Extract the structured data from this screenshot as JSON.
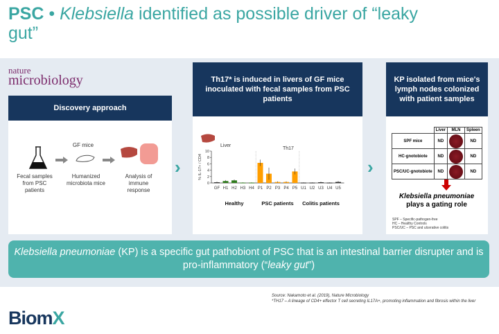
{
  "title": {
    "prefix": "PSC",
    "bullet": " • ",
    "italic": "Klebsiella",
    "rest": " identified as possible driver of “leaky gut”"
  },
  "journal": {
    "line1": "nature",
    "line2": "microbiology"
  },
  "left_panel": {
    "header": "Discovery approach",
    "gf_mice": "GF mice",
    "steps": [
      "Fecal samples from PSC patients",
      "Humanized microbiota mice",
      "Analysis of immune response"
    ]
  },
  "middle_panel": {
    "header": "Th17* is induced in livers of GF mice inoculated with fecal samples from PSC patients",
    "groups": [
      "Healthy",
      "PSC patients",
      "Colitis patients"
    ]
  },
  "right_panel": {
    "header": "KP isolated from mice's lymph nodes colonized with patient samples",
    "table": {
      "columns": [
        "Liver",
        "MLN",
        "Spleen"
      ],
      "rows": [
        {
          "label": "SPF mice",
          "liver": "ND",
          "spleen": "ND"
        },
        {
          "label": "HC-gnotobiote",
          "liver": "ND",
          "spleen": "ND"
        },
        {
          "label": "PSC/UC-gnotobiote",
          "liver": "ND",
          "spleen": "ND"
        }
      ]
    },
    "conclusion_italic": "Klebsiella pneumoniae",
    "conclusion_rest": "plays a gating role",
    "legend": [
      "SPF – Specific-pathogen-free",
      "HC – Healthy Controls",
      "PSC/UC – PSC and ulcerative colitis"
    ]
  },
  "banner": {
    "italic1": "Klebsiella pneumoniae",
    "text1": " (KP) is a specific gut pathobiont of PSC that is an intestinal barrier disrupter and is pro-inflammatory (“",
    "italic2": "leaky gut",
    "text2": "”)"
  },
  "footnotes": [
    "Source:  Nakamoto et al. (2019), Nature Microbiology",
    "*TH17  – A lineage of CD4+ effector T cell secreting IL17A+, promoting inflammation and fibrosis within the liver"
  ],
  "logo": {
    "a": "Biom",
    "b": "X"
  },
  "chart_data": {
    "type": "bar",
    "title": "Th17",
    "subtitle": "Liver",
    "ylabel": "% IL-17+ / CD4",
    "ylim": [
      0,
      10
    ],
    "yticks": [
      0,
      2,
      4,
      6,
      8,
      10
    ],
    "categories": [
      "GF",
      "H1",
      "H2",
      "H3",
      "H4",
      "P1",
      "P2",
      "P3",
      "P4",
      "P5",
      "U1",
      "U2",
      "U3",
      "U4",
      "U5"
    ],
    "values": [
      0.2,
      0.6,
      0.8,
      0.1,
      0.1,
      6.3,
      2.9,
      0.3,
      0.3,
      3.6,
      0.1,
      0.1,
      0.2,
      0.1,
      0.3
    ],
    "errors": [
      0.2,
      0.3,
      0.3,
      0.1,
      0.1,
      1.0,
      1.9,
      0.2,
      0.2,
      0.9,
      0.1,
      0.1,
      0.2,
      0.1,
      0.3
    ],
    "colors": {
      "GF": "#222222",
      "H": "#2e7d1a",
      "P": "#ff9e00",
      "U": "#222222"
    }
  }
}
